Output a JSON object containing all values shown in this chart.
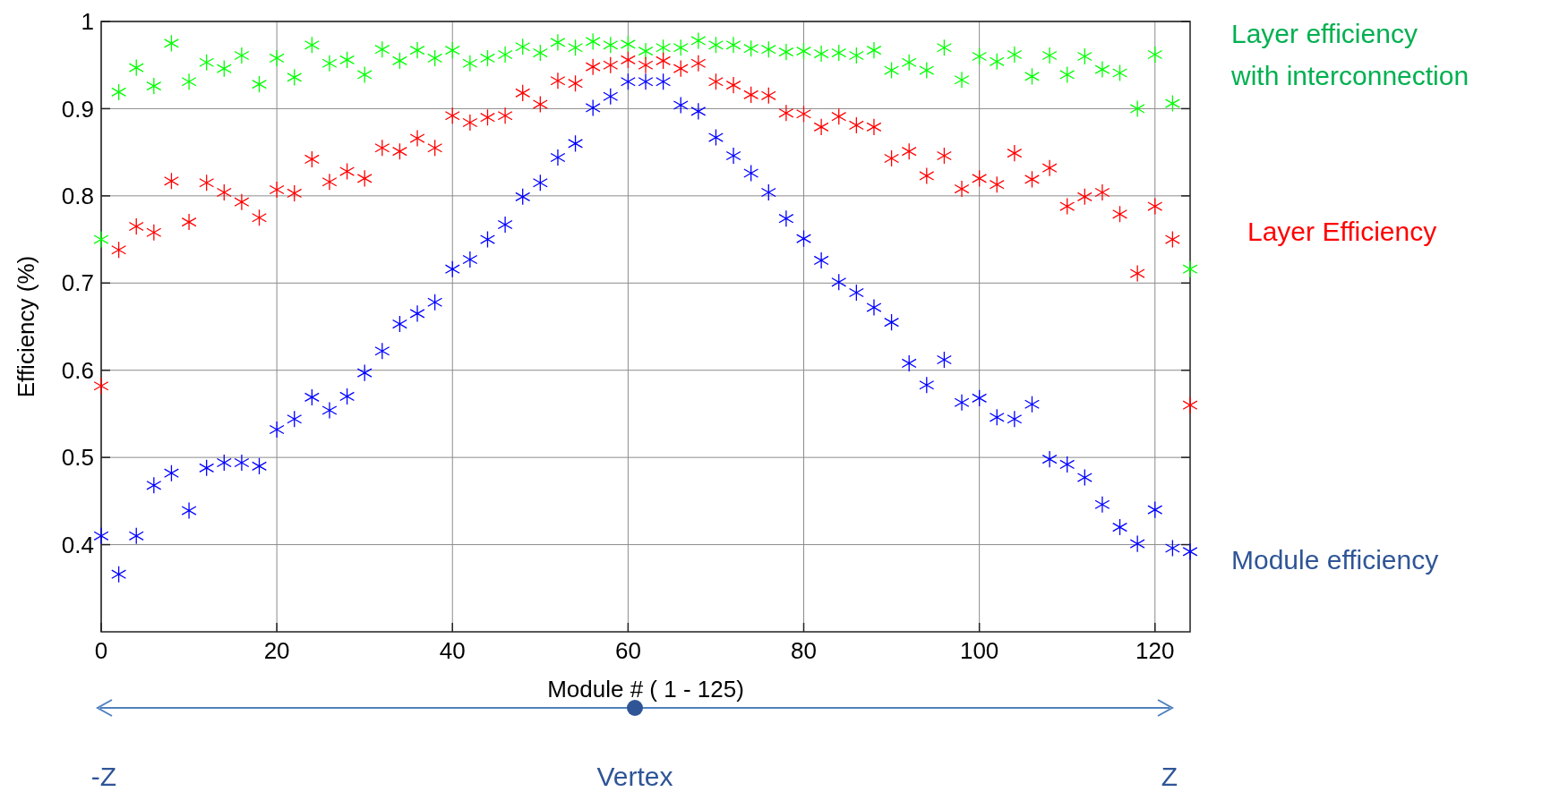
{
  "chart_data": {
    "type": "scatter",
    "xlabel": "Module # ( 1 - 125)",
    "ylabel": "Efficiency (%)",
    "x": [
      0,
      2,
      4,
      6,
      8,
      10,
      12,
      14,
      16,
      18,
      20,
      22,
      24,
      26,
      28,
      30,
      32,
      34,
      36,
      38,
      40,
      42,
      44,
      46,
      48,
      50,
      52,
      54,
      56,
      58,
      60,
      62,
      64,
      66,
      68,
      70,
      72,
      74,
      76,
      78,
      80,
      82,
      84,
      86,
      88,
      90,
      92,
      94,
      96,
      98,
      100,
      102,
      104,
      106,
      108,
      110,
      112,
      114,
      116,
      118,
      120,
      122,
      124
    ],
    "series": [
      {
        "name": "Layer efficiency\nwith interconnection",
        "color": "#00ff00",
        "values": [
          0.75,
          0.919,
          0.947,
          0.926,
          0.975,
          0.931,
          0.953,
          0.946,
          0.961,
          0.928,
          0.958,
          0.936,
          0.973,
          0.952,
          0.956,
          0.939,
          0.968,
          0.955,
          0.967,
          0.958,
          0.967,
          0.952,
          0.958,
          0.962,
          0.971,
          0.964,
          0.976,
          0.97,
          0.977,
          0.973,
          0.974,
          0.966,
          0.97,
          0.97,
          0.978,
          0.973,
          0.973,
          0.969,
          0.968,
          0.965,
          0.966,
          0.963,
          0.964,
          0.961,
          0.967,
          0.944,
          0.953,
          0.944,
          0.97,
          0.933,
          0.96,
          0.954,
          0.962,
          0.937,
          0.961,
          0.939,
          0.96,
          0.945,
          0.941,
          0.9,
          0.962,
          0.906,
          0.716
        ]
      },
      {
        "name": "Layer Efficiency",
        "color": "#ff0000",
        "values": [
          0.582,
          0.738,
          0.765,
          0.758,
          0.817,
          0.77,
          0.815,
          0.804,
          0.793,
          0.775,
          0.807,
          0.803,
          0.842,
          0.816,
          0.828,
          0.82,
          0.855,
          0.851,
          0.866,
          0.855,
          0.892,
          0.884,
          0.89,
          0.892,
          0.918,
          0.905,
          0.932,
          0.929,
          0.948,
          0.95,
          0.956,
          0.95,
          0.955,
          0.946,
          0.952,
          0.931,
          0.927,
          0.916,
          0.915,
          0.895,
          0.894,
          0.879,
          0.891,
          0.881,
          0.879,
          0.843,
          0.851,
          0.823,
          0.846,
          0.808,
          0.82,
          0.813,
          0.849,
          0.819,
          0.832,
          0.788,
          0.799,
          0.804,
          0.779,
          0.711,
          0.788,
          0.75,
          0.56
        ]
      },
      {
        "name": "Module  efficiency",
        "color": "#0000ff",
        "values": [
          0.41,
          0.366,
          0.41,
          0.468,
          0.482,
          0.439,
          0.488,
          0.494,
          0.494,
          0.49,
          0.532,
          0.544,
          0.569,
          0.554,
          0.57,
          0.597,
          0.622,
          0.653,
          0.665,
          0.678,
          0.716,
          0.727,
          0.75,
          0.767,
          0.799,
          0.815,
          0.844,
          0.86,
          0.901,
          0.914,
          0.931,
          0.931,
          0.931,
          0.904,
          0.897,
          0.867,
          0.846,
          0.826,
          0.804,
          0.774,
          0.751,
          0.726,
          0.701,
          0.689,
          0.672,
          0.655,
          0.608,
          0.583,
          0.612,
          0.563,
          0.568,
          0.546,
          0.544,
          0.561,
          0.498,
          0.492,
          0.477,
          0.446,
          0.42,
          0.401,
          0.44,
          0.396,
          0.392
        ]
      }
    ],
    "xlim": [
      0,
      124
    ],
    "xticks": [
      0,
      20,
      40,
      60,
      80,
      100,
      120
    ],
    "ylim": [
      0.3,
      1
    ],
    "yticks": [
      0.4,
      0.5,
      0.6,
      0.7,
      0.8,
      0.9,
      1
    ],
    "grid": true,
    "marker": "cross",
    "legend": "right",
    "annotations": [
      "-Z",
      "Vertex",
      "Z"
    ]
  }
}
